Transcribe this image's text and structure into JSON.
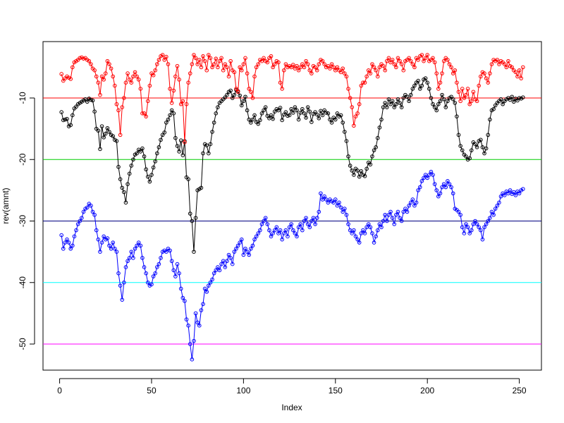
{
  "chart_data": {
    "type": "line",
    "xlabel": "Index",
    "ylabel": "rev(amnt)",
    "x": [
      1,
      2,
      3,
      4,
      5,
      6,
      7,
      8,
      9,
      10,
      11,
      12,
      13,
      14,
      15,
      16,
      17,
      18,
      19,
      20,
      21,
      22,
      23,
      24,
      25,
      26,
      27,
      28,
      29,
      30,
      31,
      32,
      33,
      34,
      35,
      36,
      37,
      38,
      39,
      40,
      41,
      42,
      43,
      44,
      45,
      46,
      47,
      48,
      49,
      50,
      51,
      52,
      53,
      54,
      55,
      56,
      57,
      58,
      59,
      60,
      61,
      62,
      63,
      64,
      65,
      66,
      67,
      68,
      69,
      70,
      71,
      72,
      73,
      74,
      75,
      76,
      77,
      78,
      79,
      80,
      81,
      82,
      83,
      84,
      85,
      86,
      87,
      88,
      89,
      90,
      91,
      92,
      93,
      94,
      95,
      96,
      97,
      98,
      99,
      100,
      101,
      102,
      103,
      104,
      105,
      106,
      107,
      108,
      109,
      110,
      111,
      112,
      113,
      114,
      115,
      116,
      117,
      118,
      119,
      120,
      121,
      122,
      123,
      124,
      125,
      126,
      127,
      128,
      129,
      130,
      131,
      132,
      133,
      134,
      135,
      136,
      137,
      138,
      139,
      140,
      141,
      142,
      143,
      144,
      145,
      146,
      147,
      148,
      149,
      150,
      151,
      152,
      153,
      154,
      155,
      156,
      157,
      158,
      159,
      160,
      161,
      162,
      163,
      164,
      165,
      166,
      167,
      168,
      169,
      170,
      171,
      172,
      173,
      174,
      175,
      176,
      177,
      178,
      179,
      180,
      181,
      182,
      183,
      184,
      185,
      186,
      187,
      188,
      189,
      190,
      191,
      192,
      193,
      194,
      195,
      196,
      197,
      198,
      199,
      200,
      201,
      202,
      203,
      204,
      205,
      206,
      207,
      208,
      209,
      210,
      211,
      212,
      213,
      214,
      215,
      216,
      217,
      218,
      219,
      220,
      221,
      222,
      223,
      224,
      225,
      226,
      227,
      228,
      229,
      230,
      231,
      232,
      233,
      234,
      235,
      236,
      237,
      238,
      239,
      240,
      241,
      242,
      243,
      244,
      245,
      246,
      247,
      248,
      249,
      250,
      251,
      252
    ],
    "series": [
      {
        "color": "#000000",
        "values": [
          -12.3,
          -13.6,
          -13.5,
          -13.4,
          -14.6,
          -14.4,
          -12.8,
          -11.7,
          -11.4,
          -11.0,
          -10.8,
          -10.6,
          -10.4,
          -10.2,
          -10.6,
          -10.1,
          -10.3,
          -10.4,
          -12.2,
          -15.0,
          -15.3,
          -18.3,
          -14.6,
          -16.4,
          -15.8,
          -14.9,
          -15.5,
          -16.0,
          -16.2,
          -16.8,
          -17.0,
          -21.2,
          -23.2,
          -24.6,
          -25.3,
          -27.0,
          -24.0,
          -22.3,
          -21.0,
          -20.0,
          -19.2,
          -19.0,
          -18.4,
          -18.7,
          -18.2,
          -19.5,
          -21.6,
          -22.8,
          -23.6,
          -22.5,
          -21.3,
          -20.3,
          -19.0,
          -18.0,
          -16.8,
          -16.0,
          -15.6,
          -14.0,
          -13.5,
          -12.8,
          -12.0,
          -12.5,
          -16.5,
          -17.8,
          -18.7,
          -16.9,
          -19.3,
          -17.0,
          -22.9,
          -23.2,
          -28.8,
          -30.0,
          -35.0,
          -29.5,
          -25.0,
          -24.8,
          -24.6,
          -19.0,
          -17.5,
          -17.7,
          -19.0,
          -17.5,
          -15.5,
          -14.0,
          -12.5,
          -11.5,
          -10.8,
          -10.5,
          -10.2,
          -9.9,
          -9.5,
          -9.0,
          -8.8,
          -10.0,
          -9.5,
          -8.7,
          -8.9,
          -9.6,
          -11.2,
          -10.5,
          -9.8,
          -12.0,
          -13.5,
          -14.0,
          -13.5,
          -12.8,
          -13.9,
          -14.2,
          -13.6,
          -12.5,
          -12.0,
          -11.5,
          -12.9,
          -13.3,
          -12.8,
          -13.4,
          -12.2,
          -11.8,
          -12.0,
          -11.6,
          -13.6,
          -12.7,
          -12.3,
          -12.9,
          -12.8,
          -11.8,
          -12.4,
          -11.5,
          -12.0,
          -13.5,
          -12.4,
          -11.8,
          -12.5,
          -13.2,
          -11.5,
          -12.2,
          -13.9,
          -12.6,
          -12.3,
          -12.7,
          -13.3,
          -12.1,
          -12.8,
          -12.0,
          -12.4,
          -12.5,
          -13.5,
          -14.0,
          -13.2,
          -13.5,
          -12.5,
          -13.0,
          -12.8,
          -14.0,
          -15.5,
          -17.0,
          -19.5,
          -21.0,
          -21.8,
          -22.5,
          -21.5,
          -21.8,
          -22.8,
          -21.9,
          -22.5,
          -22.7,
          -21.5,
          -20.5,
          -20.8,
          -19.5,
          -18.5,
          -18.0,
          -16.5,
          -14.8,
          -13.5,
          -11.5,
          -10.8,
          -11.5,
          -10.2,
          -11.0,
          -10.5,
          -11.5,
          -11.0,
          -10.2,
          -10.8,
          -11.5,
          -10.0,
          -9.5,
          -9.8,
          -10.5,
          -9.5,
          -8.5,
          -8.0,
          -7.5,
          -7.2,
          -8.5,
          -8.0,
          -7.0,
          -6.8,
          -7.5,
          -8.5,
          -10.0,
          -11.0,
          -11.5,
          -12.0,
          -11.0,
          -10.5,
          -9.5,
          -10.2,
          -11.5,
          -10.5,
          -10.0,
          -9.8,
          -10.2,
          -10.8,
          -13.0,
          -16.0,
          -17.8,
          -18.5,
          -19.2,
          -19.5,
          -20.0,
          -19.8,
          -18.5,
          -17.2,
          -17.5,
          -18.0,
          -17.0,
          -16.8,
          -18.0,
          -19.0,
          -18.2,
          -16.0,
          -13.5,
          -12.0,
          -11.8,
          -11.2,
          -10.8,
          -10.5,
          -10.2,
          -11.0,
          -10.5,
          -10.2,
          -10.0,
          -10.3,
          -9.8,
          -10.6,
          -10.1,
          -10.4,
          -10.0,
          -10.1,
          -9.9
        ]
      },
      {
        "color": "#ff0000",
        "values": [
          -6.1,
          -7.2,
          -6.8,
          -6.5,
          -6.7,
          -6.9,
          -5.0,
          -4.2,
          -4.0,
          -3.8,
          -3.5,
          -3.4,
          -3.6,
          -3.5,
          -3.8,
          -4.0,
          -4.5,
          -5.2,
          -5.5,
          -6.5,
          -7.5,
          -9.5,
          -6.5,
          -7.0,
          -6.0,
          -4.0,
          -4.5,
          -5.2,
          -6.5,
          -8.0,
          -11.0,
          -12.0,
          -16.0,
          -11.5,
          -10.0,
          -7.5,
          -6.0,
          -7.0,
          -7.5,
          -6.5,
          -5.8,
          -6.5,
          -7.0,
          -8.5,
          -12.5,
          -12.5,
          -13.0,
          -10.5,
          -8.0,
          -6.0,
          -6.3,
          -5.5,
          -4.5,
          -3.8,
          -3.2,
          -3.0,
          -3.8,
          -3.3,
          -4.5,
          -8.5,
          -10.8,
          -8.8,
          -6.5,
          -4.8,
          -7.0,
          -11.0,
          -10.5,
          -17.2,
          -11.0,
          -7.5,
          -6.0,
          -4.5,
          -3.0,
          -3.5,
          -4.5,
          -3.8,
          -5.0,
          -3.2,
          -4.0,
          -5.5,
          -3.0,
          -3.5,
          -5.0,
          -4.5,
          -3.6,
          -5.0,
          -4.0,
          -3.5,
          -5.5,
          -4.5,
          -5.0,
          -6.5,
          -4.0,
          -5.5,
          -5.8,
          -8.5,
          -9.0,
          -5.0,
          -5.5,
          -4.5,
          -3.5,
          -6.0,
          -8.5,
          -9.0,
          -10.0,
          -6.5,
          -5.0,
          -4.5,
          -3.8,
          -4.0,
          -3.5,
          -4.0,
          -4.2,
          -3.5,
          -3.2,
          -5.0,
          -4.5,
          -4.0,
          -4.2,
          -7.5,
          -8.5,
          -5.5,
          -4.5,
          -5.0,
          -4.8,
          -5.0,
          -4.6,
          -5.2,
          -4.8,
          -5.5,
          -5.0,
          -4.5,
          -5.0,
          -4.0,
          -4.5,
          -5.5,
          -6.0,
          -4.8,
          -5.0,
          -5.5,
          -4.5,
          -3.8,
          -4.0,
          -4.5,
          -5.0,
          -4.8,
          -5.2,
          -4.5,
          -5.0,
          -5.5,
          -5.0,
          -5.5,
          -5.8,
          -5.2,
          -6.0,
          -6.5,
          -8.5,
          -10.0,
          -11.5,
          -14.5,
          -13.0,
          -12.5,
          -11.0,
          -8.0,
          -7.5,
          -7.5,
          -6.5,
          -5.5,
          -6.0,
          -4.5,
          -5.0,
          -5.5,
          -6.5,
          -5.0,
          -4.5,
          -4.8,
          -5.5,
          -4.0,
          -3.5,
          -4.2,
          -3.8,
          -4.5,
          -5.0,
          -3.5,
          -4.0,
          -4.5,
          -5.5,
          -4.0,
          -3.8,
          -3.5,
          -4.0,
          -4.5,
          -5.0,
          -3.5,
          -3.8,
          -3.2,
          -3.0,
          -4.0,
          -3.5,
          -3.0,
          -4.0,
          -3.8,
          -3.5,
          -4.2,
          -6.0,
          -8.5,
          -7.5,
          -6.0,
          -4.0,
          -3.5,
          -3.8,
          -4.5,
          -5.0,
          -6.0,
          -5.5,
          -7.5,
          -9.0,
          -10.5,
          -8.5,
          -10.0,
          -9.5,
          -8.5,
          -11.0,
          -10.5,
          -9.0,
          -10.2,
          -10.5,
          -8.0,
          -6.5,
          -5.8,
          -6.0,
          -6.8,
          -7.5,
          -6.0,
          -4.5,
          -3.8,
          -4.0,
          -3.8,
          -4.5,
          -4.0,
          -4.2,
          -4.5,
          -5.0,
          -4.0,
          -4.8,
          -5.0,
          -5.5,
          -5.8,
          -6.5,
          -5.5,
          -6.8,
          -5.0
        ]
      },
      {
        "color": "#0000ff",
        "values": [
          -32.3,
          -34.5,
          -33.5,
          -33.0,
          -33.5,
          -34.5,
          -34.0,
          -32.5,
          -31.5,
          -30.5,
          -30.0,
          -29.5,
          -28.5,
          -28.0,
          -27.8,
          -27.2,
          -27.5,
          -28.5,
          -29.0,
          -31.5,
          -33.0,
          -35.0,
          -33.5,
          -32.5,
          -33.0,
          -32.8,
          -34.0,
          -34.5,
          -33.5,
          -34.5,
          -35.0,
          -38.5,
          -40.5,
          -42.8,
          -40.0,
          -37.5,
          -36.5,
          -36.0,
          -35.0,
          -36.0,
          -34.5,
          -34.0,
          -33.5,
          -34.0,
          -36.0,
          -37.5,
          -38.5,
          -40.0,
          -40.5,
          -40.3,
          -39.0,
          -38.5,
          -37.5,
          -37.0,
          -36.0,
          -35.0,
          -34.8,
          -35.0,
          -34.5,
          -34.8,
          -36.5,
          -38.0,
          -39.0,
          -37.0,
          -38.5,
          -41.0,
          -42.5,
          -43.0,
          -46.0,
          -47.0,
          -50.0,
          -52.5,
          -49.5,
          -45.0,
          -46.5,
          -47.0,
          -44.5,
          -43.5,
          -41.0,
          -41.5,
          -40.5,
          -40.0,
          -39.5,
          -38.5,
          -38.0,
          -37.5,
          -38.0,
          -37.0,
          -36.5,
          -37.5,
          -36.5,
          -35.5,
          -36.0,
          -37.0,
          -35.0,
          -34.5,
          -34.0,
          -33.5,
          -33.0,
          -35.5,
          -34.5,
          -35.0,
          -35.5,
          -34.5,
          -34.0,
          -33.0,
          -32.5,
          -32.0,
          -31.5,
          -30.5,
          -30.0,
          -29.5,
          -30.5,
          -31.5,
          -32.5,
          -32.0,
          -31.5,
          -31.0,
          -32.0,
          -31.5,
          -33.0,
          -32.0,
          -31.5,
          -32.5,
          -31.0,
          -30.5,
          -31.5,
          -32.0,
          -32.5,
          -31.0,
          -30.5,
          -31.5,
          -30.0,
          -29.5,
          -30.5,
          -31.0,
          -30.0,
          -29.5,
          -30.5,
          -29.5,
          -28.5,
          -25.5,
          -26.5,
          -26.0,
          -26.5,
          -27.0,
          -26.5,
          -26.8,
          -27.0,
          -26.5,
          -27.5,
          -27.0,
          -27.8,
          -28.5,
          -28.0,
          -29.0,
          -30.5,
          -31.5,
          -32.0,
          -31.5,
          -32.5,
          -33.0,
          -33.5,
          -32.0,
          -31.5,
          -32.0,
          -31.0,
          -30.5,
          -31.0,
          -32.0,
          -33.5,
          -32.5,
          -31.5,
          -30.5,
          -31.0,
          -30.0,
          -29.0,
          -30.0,
          -29.0,
          -28.5,
          -29.5,
          -30.5,
          -29.0,
          -28.5,
          -29.5,
          -30.0,
          -28.5,
          -28.0,
          -28.5,
          -27.5,
          -27.0,
          -26.5,
          -27.5,
          -27.0,
          -25.0,
          -24.5,
          -23.5,
          -23.0,
          -22.5,
          -23.0,
          -22.5,
          -22.0,
          -22.5,
          -24.0,
          -25.0,
          -26.0,
          -25.5,
          -24.5,
          -24.0,
          -24.5,
          -23.5,
          -24.0,
          -24.5,
          -25.5,
          -28.0,
          -28.2,
          -28.5,
          -29.0,
          -31.0,
          -32.0,
          -30.5,
          -31.0,
          -32.0,
          -31.5,
          -30.5,
          -30.0,
          -30.5,
          -31.0,
          -31.5,
          -33.0,
          -31.0,
          -30.5,
          -30.0,
          -29.5,
          -28.5,
          -29.0,
          -28.0,
          -27.5,
          -27.0,
          -26.0,
          -25.5,
          -25.8,
          -25.2,
          -25.5,
          -25.0,
          -25.6,
          -25.3,
          -25.8,
          -25.2,
          -25.5,
          -25.0,
          -24.8
        ]
      }
    ],
    "hlines": [
      {
        "value": -10,
        "color": "#ff0000"
      },
      {
        "value": -20,
        "color": "#00cd00"
      },
      {
        "value": -30,
        "color": "#000080"
      },
      {
        "value": -40,
        "color": "#00ffff"
      },
      {
        "value": -50,
        "color": "#ff00ff"
      }
    ],
    "xlim": [
      -9.04,
      262.04
    ],
    "ylim": [
      -54.24,
      -0.83
    ],
    "xticks": [
      0,
      50,
      100,
      150,
      200,
      250
    ],
    "yticks": [
      -10,
      -20,
      -30,
      -40,
      -50
    ]
  }
}
